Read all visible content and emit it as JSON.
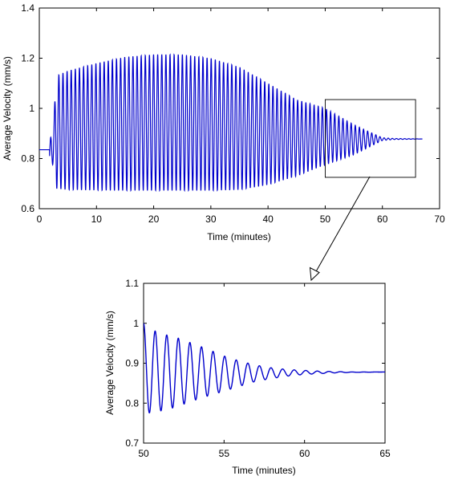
{
  "colors": {
    "line": "#0000cc",
    "axis": "#000000",
    "box": "#000000",
    "background": "#ffffff"
  },
  "chart_data": [
    {
      "type": "line",
      "title": "",
      "xlabel": "Time (minutes)",
      "ylabel": "Average Velocity (mm/s)",
      "xlim": [
        0,
        70
      ],
      "ylim": [
        0.6,
        1.4
      ],
      "xticks": [
        "0",
        "10",
        "20",
        "30",
        "40",
        "50",
        "60",
        "70"
      ],
      "yticks": [
        "0.6",
        "0.8",
        "1",
        "1.2",
        "1.4"
      ],
      "grid": false,
      "legend": "none",
      "series": [
        {
          "model": "damped_oscillation",
          "baseline": 0.878,
          "initial_value": 0.835,
          "oscillation_start": 1.8,
          "oscillation_end": 67,
          "period": 0.72,
          "envelope": {
            "t": [
              1.8,
              2.5,
              3.0,
              5,
              10,
              15,
              20,
              25,
              30,
              35,
              40,
              45,
              50,
              55,
              60,
              62,
              65,
              67
            ],
            "max": [
              0.86,
              0.95,
              1.13,
              1.15,
              1.18,
              1.205,
              1.215,
              1.215,
              1.2,
              1.165,
              1.1,
              1.035,
              1.0,
              0.935,
              0.883,
              0.88,
              0.879,
              0.878
            ],
            "min": [
              0.76,
              0.78,
              0.68,
              0.675,
              0.673,
              0.672,
              0.672,
              0.672,
              0.672,
              0.675,
              0.695,
              0.73,
              0.775,
              0.815,
              0.872,
              0.876,
              0.877,
              0.878
            ]
          }
        }
      ],
      "zoom_box": {
        "x": [
          50,
          65.8
        ],
        "y": [
          0.725,
          1.035
        ]
      }
    },
    {
      "type": "line",
      "title": "",
      "xlabel": "Time (minutes)",
      "ylabel": "Average Velocity (mm/s)",
      "xlim": [
        50,
        65
      ],
      "ylim": [
        0.7,
        1.1
      ],
      "xticks": [
        "50",
        "55",
        "60",
        "65"
      ],
      "yticks": [
        "0.7",
        "0.8",
        "0.9",
        "1",
        "1.1"
      ],
      "grid": false,
      "legend": "none",
      "series": [
        {
          "model": "damped_oscillation",
          "baseline": 0.878,
          "oscillation_start": 50,
          "oscillation_end": 65,
          "period": 0.72,
          "start_value": 1.0,
          "envelope": {
            "t": [
              50,
              50.5,
              51,
              52,
              53,
              54,
              55,
              56,
              57,
              58,
              59,
              60,
              61,
              62,
              63,
              65
            ],
            "max": [
              1.0,
              0.985,
              0.975,
              0.965,
              0.95,
              0.935,
              0.918,
              0.905,
              0.895,
              0.888,
              0.884,
              0.882,
              0.88,
              0.879,
              0.878,
              0.878
            ],
            "min": [
              0.775,
              0.776,
              0.78,
              0.79,
              0.805,
              0.818,
              0.83,
              0.843,
              0.855,
              0.862,
              0.868,
              0.872,
              0.874,
              0.876,
              0.877,
              0.878
            ]
          }
        }
      ]
    }
  ]
}
